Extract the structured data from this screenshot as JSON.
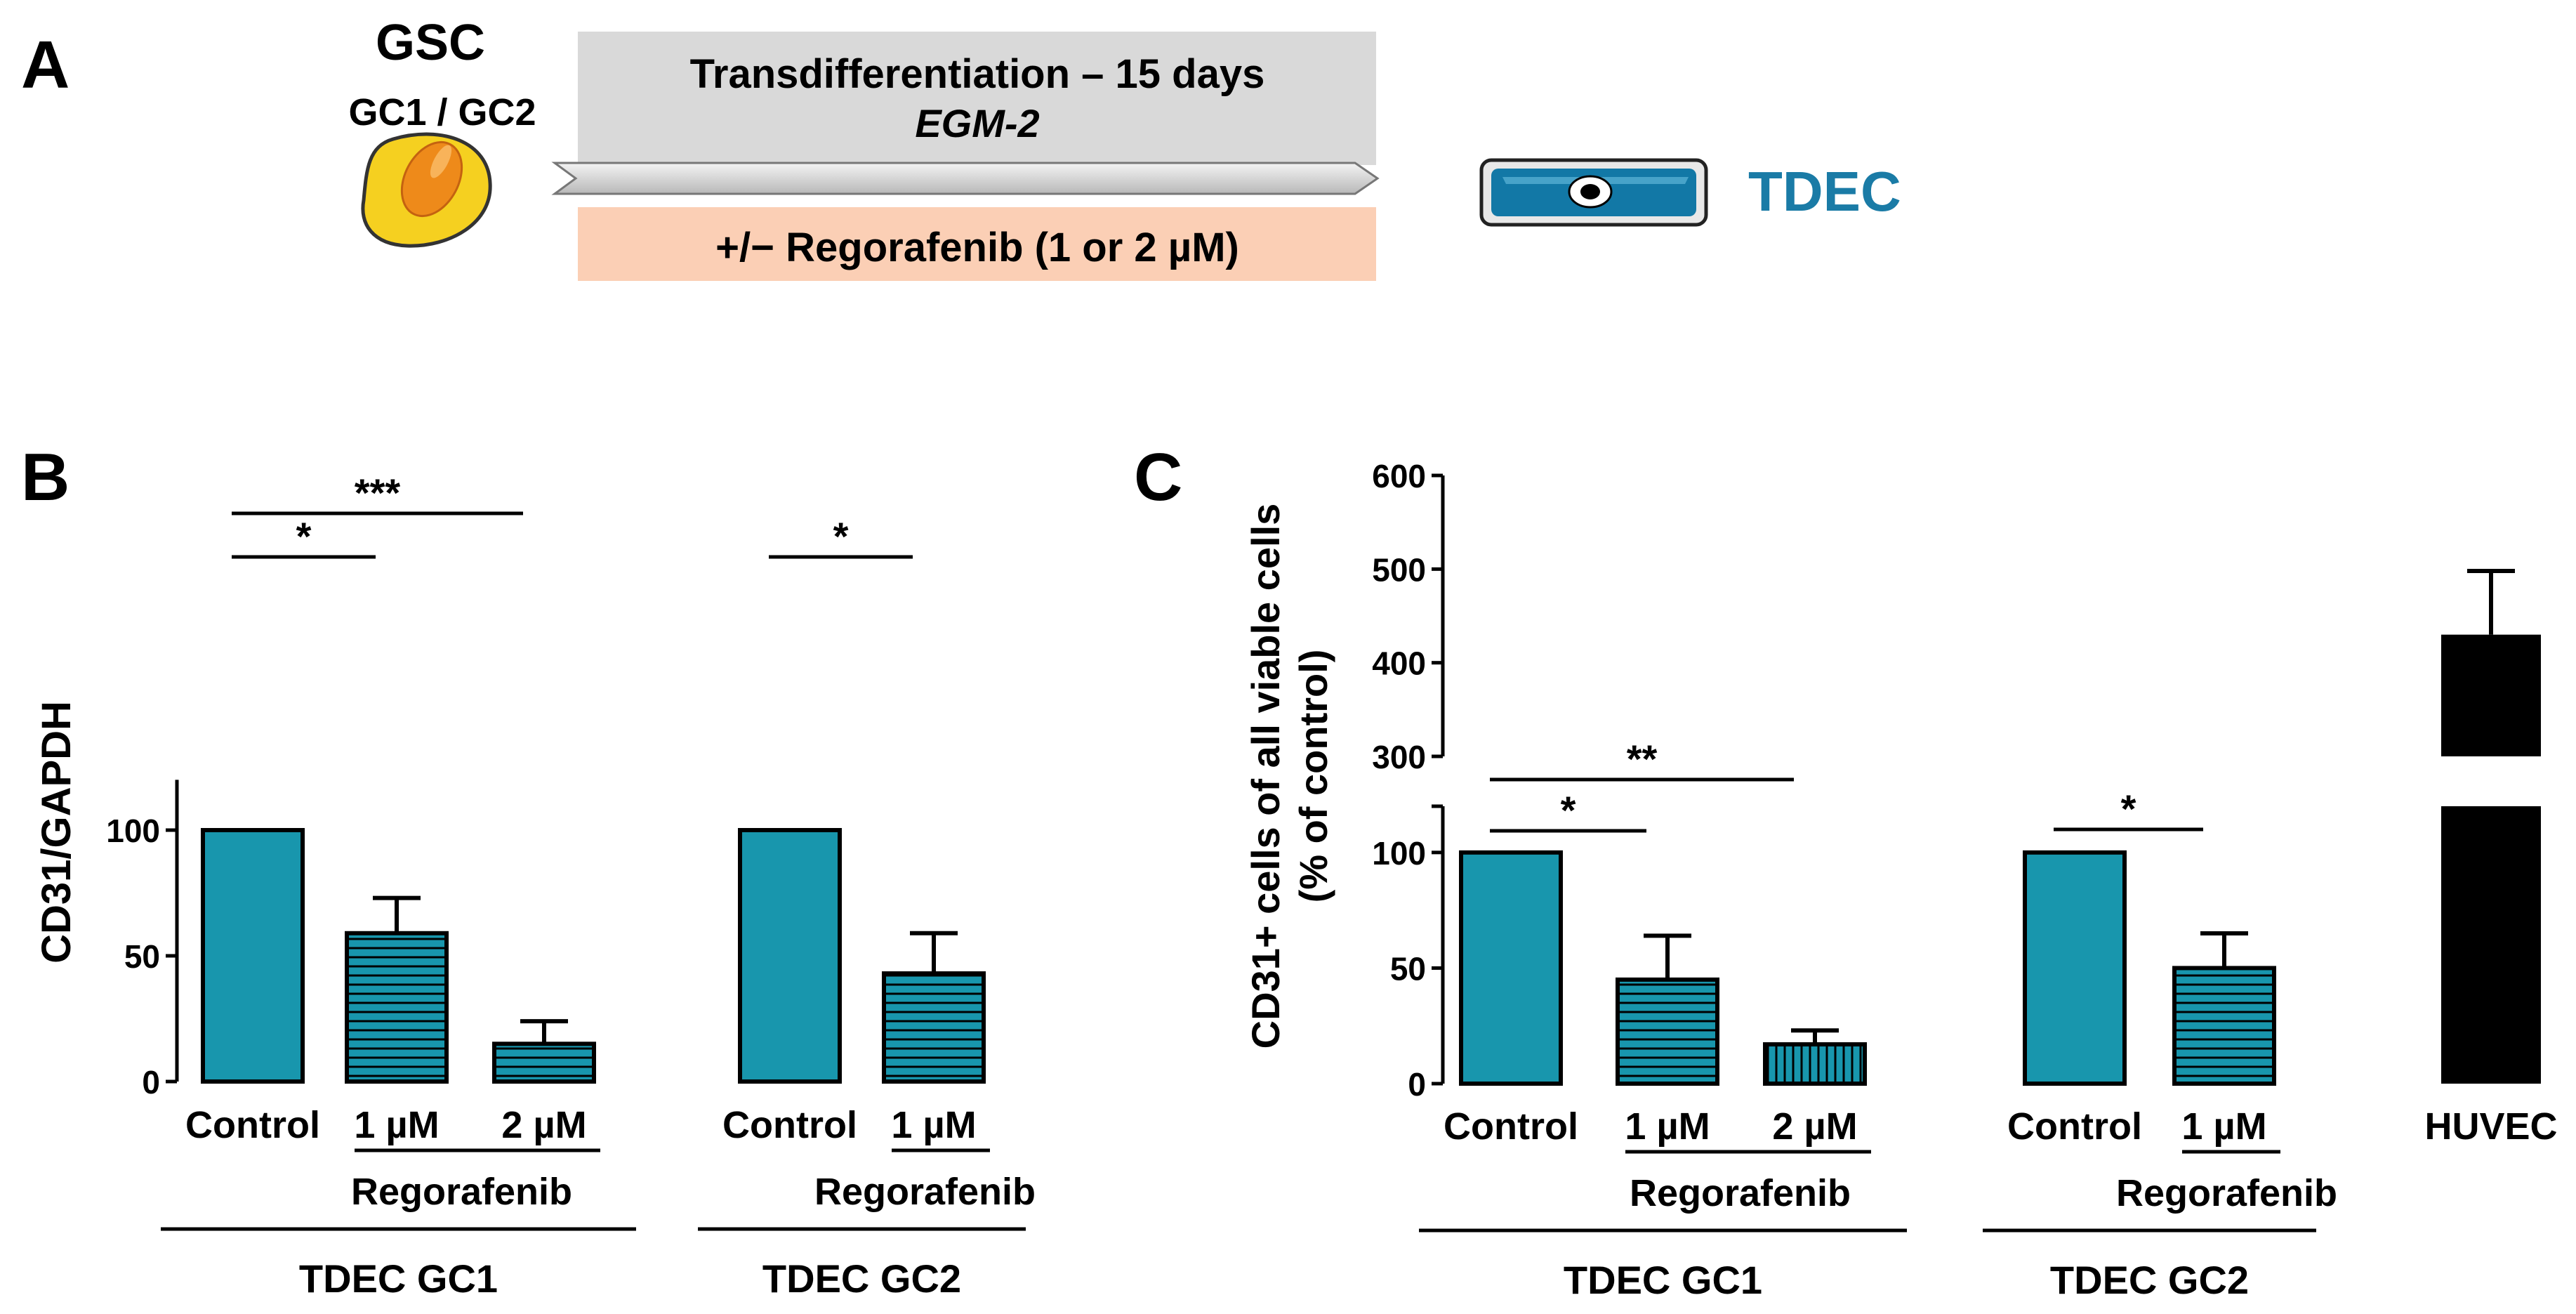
{
  "colors": {
    "teal": "#1896AD",
    "black": "#000000",
    "gray_box": "#D9D9D9",
    "salmon_box": "#FBCFB5",
    "cell_yellow": "#F5D020",
    "cell_orange": "#EE8A1A",
    "tdec_blue": "#1278A6",
    "tdec_text": "#1A7BA6"
  },
  "panel_a": {
    "label": "A",
    "gsc_title": "GSC",
    "gsc_sub": "GC1 / GC2",
    "transdiff_line1": "Transdifferentiation – 15 days",
    "transdiff_line2": "EGM-2",
    "regorafenib_box": "+/− Regorafenib (1 or 2 µM)",
    "tdec_label": "TDEC",
    "icons": [
      "gsc-cell-icon",
      "arrow-icon",
      "tdec-cell-icon"
    ]
  },
  "chart_data": [
    {
      "panel": "B",
      "type": "bar",
      "ylabel": "CD31/GAPDH",
      "ylim": [
        0,
        120
      ],
      "yticks": [
        0,
        50,
        100
      ],
      "groups": [
        {
          "name": "TDEC GC1",
          "sublabel": "Regorafenib",
          "categories": [
            "Control",
            "1 µM",
            "2 µM"
          ],
          "values": [
            100,
            59,
            15
          ],
          "errors": [
            0,
            14,
            9
          ],
          "fill": [
            "solid",
            "hlines",
            "hlines"
          ]
        },
        {
          "name": "TDEC GC2",
          "sublabel": "Regorafenib",
          "categories": [
            "Control",
            "1 µM"
          ],
          "values": [
            100,
            43
          ],
          "errors": [
            0,
            16
          ],
          "fill": [
            "solid",
            "hlines"
          ]
        }
      ],
      "significance": [
        {
          "group": 0,
          "from": 0,
          "to": 1,
          "label": "*"
        },
        {
          "group": 0,
          "from": 0,
          "to": 2,
          "label": "***"
        },
        {
          "group": 1,
          "from": 0,
          "to": 1,
          "label": "*"
        }
      ]
    },
    {
      "panel": "C",
      "type": "bar",
      "ylabel_line1": "CD31+ cells of all viable cells",
      "ylabel_line2": "(% of control)",
      "axis_break": {
        "lower": [
          0,
          120
        ],
        "upper": [
          300,
          600
        ]
      },
      "yticks_lower": [
        0,
        50,
        100
      ],
      "yticks_upper": [
        300,
        400,
        500,
        600
      ],
      "groups": [
        {
          "name": "TDEC GC1",
          "sublabel": "Regorafenib",
          "categories": [
            "Control",
            "1 µM",
            "2 µM"
          ],
          "values": [
            100,
            45,
            17
          ],
          "errors": [
            0,
            19,
            6
          ],
          "fill": [
            "solid",
            "hlines",
            "vlines"
          ]
        },
        {
          "name": "TDEC GC2",
          "sublabel": "Regorafenib",
          "categories": [
            "Control",
            "1 µM"
          ],
          "values": [
            100,
            50
          ],
          "errors": [
            0,
            15
          ],
          "fill": [
            "solid",
            "hlines"
          ]
        },
        {
          "name": "",
          "sublabel": "",
          "categories": [
            "HUVEC"
          ],
          "values": [
            430
          ],
          "errors": [
            68
          ],
          "fill": [
            "black"
          ]
        }
      ],
      "significance": [
        {
          "group": 0,
          "from": 0,
          "to": 1,
          "label": "*"
        },
        {
          "group": 0,
          "from": 0,
          "to": 2,
          "label": "**"
        },
        {
          "group": 1,
          "from": 0,
          "to": 1,
          "label": "*"
        }
      ]
    }
  ]
}
